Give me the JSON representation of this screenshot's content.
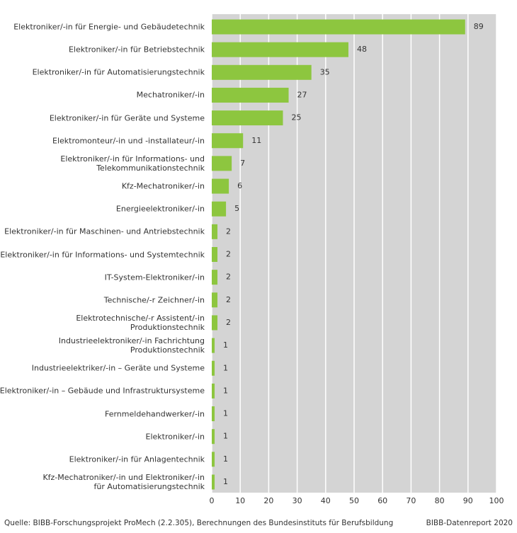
{
  "chart_data": {
    "type": "barh",
    "categories": [
      "Elektroniker/-in für Energie- und Gebäudetechnik",
      "Elektroniker/-in für Betriebstechnik",
      "Elektroniker/-in für Automatisierungstechnik",
      "Mechatroniker/-in",
      "Elektroniker/-in für Geräte und Systeme",
      "Elektromonteur/-in und -installateur/-in",
      "Elektroniker/-in für Informations- und\nTelekommunikationstechnik",
      "Kfz-Mechatroniker/-in",
      "Energieelektroniker/-in",
      "Elektroniker/-in für Maschinen- und Antriebstechnik",
      "Elektroniker/-in für Informations- und Systemtechnik",
      "IT-System-Elektroniker/-in",
      "Technische/-r Zeichner/-in",
      "Elektrotechnische/-r Assistent/-in Produktionstechnik",
      "Industrieelektroniker/-in Fachrichtung Produktionstechnik",
      "Industrieelektriker/-in – Geräte und Systeme",
      "Elektroniker/-in – Gebäude und Infrastruktursysteme",
      "Fernmeldehandwerker/-in",
      "Elektroniker/-in",
      "Elektroniker/-in für Anlagentechnik",
      "Kfz-Mechatroniker/-in und Elektroniker/-in\nfür Automatisierungstechnik"
    ],
    "values": [
      89,
      48,
      35,
      27,
      25,
      11,
      7,
      6,
      5,
      2,
      2,
      2,
      2,
      2,
      1,
      1,
      1,
      1,
      1,
      1,
      1
    ],
    "color": "#8dc63f",
    "xlim": [
      0,
      100
    ],
    "xticks": [
      0,
      10,
      20,
      30,
      40,
      50,
      60,
      70,
      80,
      90,
      100
    ],
    "grid": true,
    "source": "Quelle: BIBB-Forschungsprojekt ProMech (2.2.305), Berechnungen des Bundesinstituts für Berufsbildung",
    "credit": "BIBB-Datenreport 2020"
  }
}
